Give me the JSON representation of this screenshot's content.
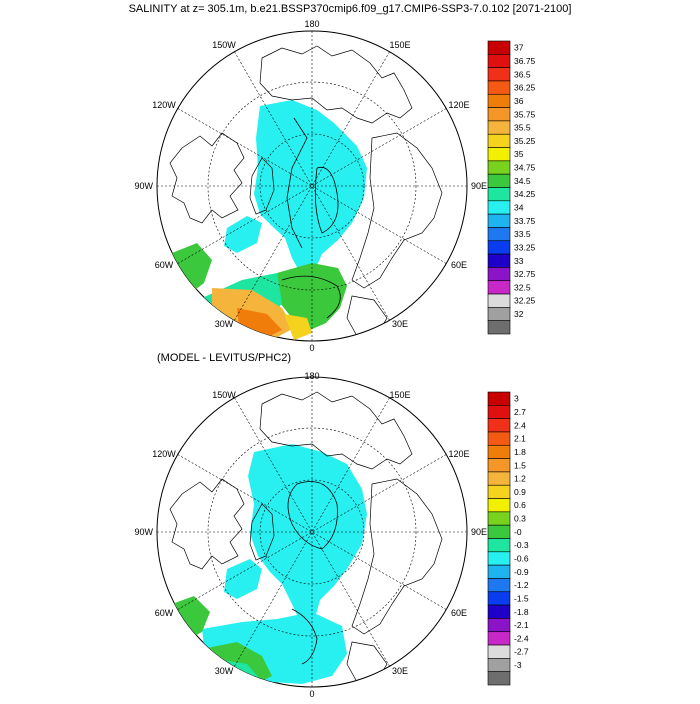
{
  "title": "SALINITY at z= 305.1m, b.e21.BSSP370cmip6.f09_g17.CMIP6-SSP3-7.0.102 [2071-2100]",
  "subtitle": "(MODEL - LEVITUS/PHC2)",
  "maps": [
    {
      "id": "top",
      "lon_labels": {
        "n": "180",
        "nne": "150E",
        "ene": "120E",
        "e": "90E",
        "ese": "60E",
        "sse": "30E",
        "s": "0",
        "ssw": "30W",
        "wsw": "60W",
        "w": "90W",
        "wnw": "120W",
        "nnw": "150W"
      },
      "colorbar": {
        "labels": [
          "37",
          "36.75",
          "36.5",
          "36.25",
          "36",
          "35.75",
          "35.5",
          "35.25",
          "35",
          "34.75",
          "34.5",
          "34.25",
          "34",
          "33.75",
          "33.5",
          "33.25",
          "33",
          "32.75",
          "32.5",
          "32.25",
          "32"
        ],
        "colors": [
          "#c80000",
          "#e01010",
          "#f03018",
          "#f55a14",
          "#f07d0a",
          "#f59628",
          "#f5b43c",
          "#f5d21e",
          "#f0f000",
          "#78d21e",
          "#3cc83c",
          "#1ee6a0",
          "#28f0f0",
          "#1eb4f0",
          "#1e78f0",
          "#0a3cf0",
          "#1e00c8",
          "#8c14c8",
          "#c828c8",
          "#dcdcdc",
          "#a0a0a0",
          "#6e6e6e"
        ]
      }
    },
    {
      "id": "bottom",
      "lon_labels": {
        "n": "180",
        "nne": "150E",
        "ene": "120E",
        "e": "90E",
        "ese": "60E",
        "sse": "30E",
        "s": "0",
        "ssw": "30W",
        "wsw": "60W",
        "w": "90W",
        "wnw": "120W",
        "nnw": "150W"
      },
      "colorbar": {
        "labels": [
          "3",
          "2.7",
          "2.4",
          "2.1",
          "1.8",
          "1.5",
          "1.2",
          "0.9",
          "0.6",
          "0.3",
          "-0",
          "-0.3",
          "-0.6",
          "-0.9",
          "-1.2",
          "-1.5",
          "-1.8",
          "-2.1",
          "-2.4",
          "-2.7",
          "-3"
        ],
        "colors": [
          "#c80000",
          "#e01010",
          "#f03018",
          "#f55a14",
          "#f07d0a",
          "#f59628",
          "#f5b43c",
          "#f5d21e",
          "#f0f000",
          "#78d21e",
          "#3cc83c",
          "#1ee6a0",
          "#28f0f0",
          "#1eb4f0",
          "#1e78f0",
          "#0a3cf0",
          "#1e00c8",
          "#8c14c8",
          "#c828c8",
          "#dcdcdc",
          "#a0a0a0",
          "#6e6e6e"
        ]
      }
    }
  ]
}
